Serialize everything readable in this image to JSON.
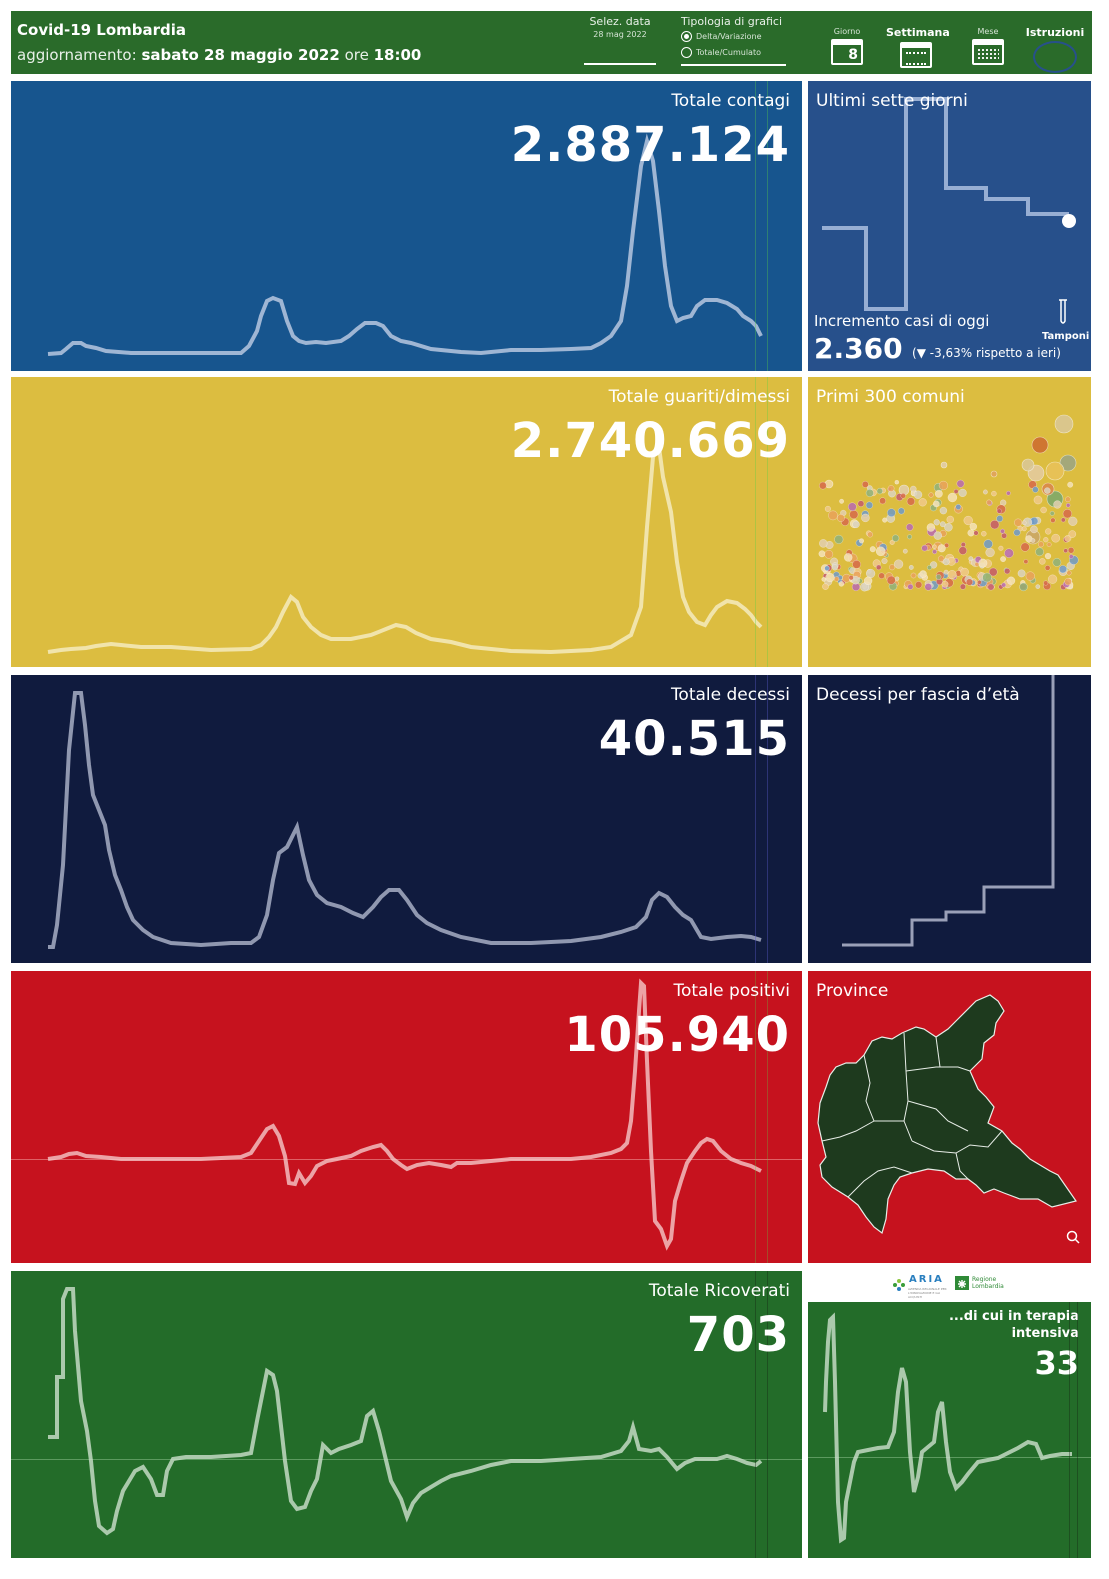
{
  "header": {
    "title": "Covid-19 Lombardia",
    "update_label": "aggiornamento:",
    "update_date": "sabato 28 maggio 2022",
    "update_time_label": "ore",
    "update_time": "18:00",
    "date_select_label": "Selez. data",
    "date_select_value": "28 mag 2022",
    "chart_type_label": "Tipologia di grafici",
    "chart_type_options": [
      "Delta/Variazione",
      "Totale/Cumulato"
    ],
    "chart_type_selected": "Delta/Variazione",
    "period_buttons": {
      "day": "Giorno",
      "week": "Settimana",
      "month": "Mese"
    },
    "day_icon_number": "8",
    "instructions_label": "Istruzioni"
  },
  "panels": {
    "contagi": {
      "title": "Totale contagi",
      "value": "2.887.124",
      "color": "#17558e"
    },
    "guariti": {
      "title": "Totale guariti/dimessi",
      "value": "2.740.669",
      "color": "#dcbd40"
    },
    "decessi": {
      "title": "Totale decessi",
      "value": "40.515",
      "color": "#101b3e"
    },
    "positivi": {
      "title": "Totale positivi",
      "value": "105.940",
      "color": "#c6121e"
    },
    "ricoverati": {
      "title": "Totale Ricoverati",
      "value": "703",
      "color": "#236c29"
    }
  },
  "side": {
    "seven_days": {
      "title": "Ultimi sette giorni",
      "increment_label": "Incremento casi di oggi",
      "increment_value": "2.360",
      "increment_delta": "-3,63% rispetto a  ieri",
      "tests_label": "Tamponi",
      "color": "#27508b"
    },
    "comuni": {
      "title": "Primi 300 comuni",
      "color": "#dcbd40"
    },
    "age": {
      "title": "Decessi per fascia d’età",
      "color": "#101b3e"
    },
    "province": {
      "title": "Province",
      "color": "#c6121e"
    },
    "intensive": {
      "title": "...di cui in terapia intensiva",
      "value": "33",
      "color": "#236c29"
    },
    "logos": {
      "aria": "ARIA",
      "aria_sub": "AZIENDA REGIONALE PER L'INNOVAZIONE E GLI ACQUISTI",
      "regione": "Regione Lombardia"
    }
  }
}
